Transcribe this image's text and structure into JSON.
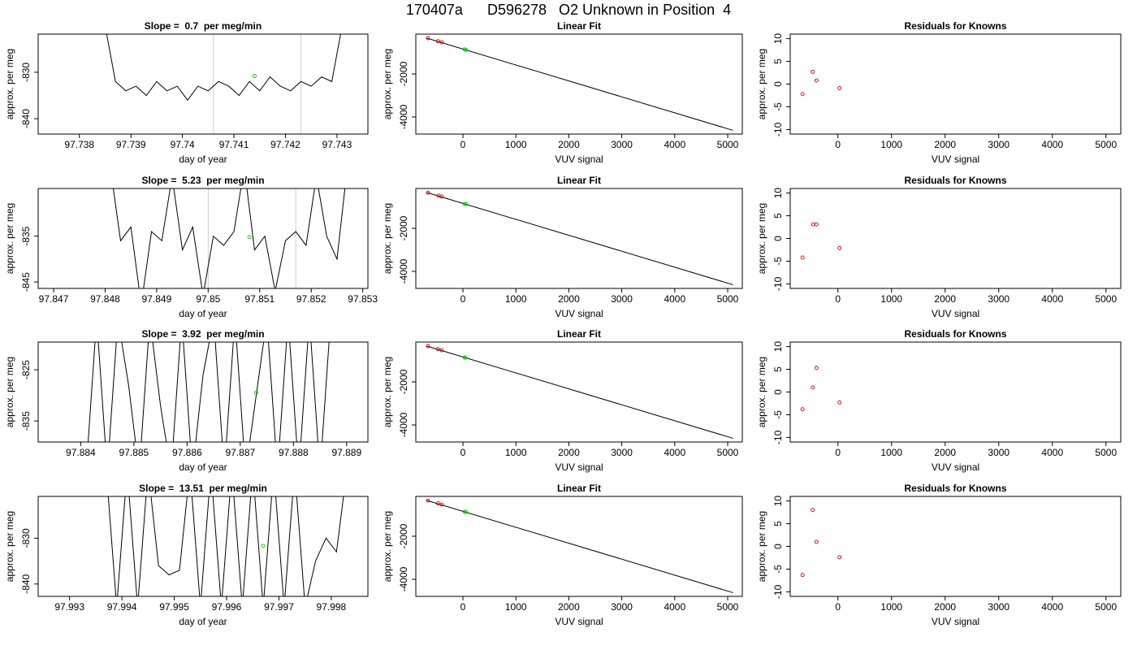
{
  "title": "170407a      D596278   O2 Unknown in Position  4",
  "chart_data": [
    {
      "type": "line",
      "title": "Slope =  0.7  per meg/min",
      "xlabel": "day of year",
      "ylabel": "approx. per meg",
      "xlim": [
        97.7372,
        97.7436
      ],
      "ylim": [
        -843.3,
        -821.8
      ],
      "xticks": [
        97.738,
        97.739,
        97.74,
        97.741,
        97.742,
        97.743
      ],
      "yticks": [
        -840,
        -830
      ],
      "vlines": {
        "color": "#cccccc",
        "values": [
          97.7406,
          97.7423
        ]
      },
      "lines": [
        {
          "color": "#000000",
          "x": [
            97.7385,
            97.7387,
            97.7389,
            97.7391,
            97.7393,
            97.7395,
            97.7397,
            97.7399,
            97.7401,
            97.7403,
            97.7405,
            97.7407,
            97.7409,
            97.7411,
            97.7413,
            97.7415,
            97.7417,
            97.7419,
            97.7421,
            97.7423,
            97.7425,
            97.7427,
            97.7429,
            97.7431
          ],
          "y": [
            -820,
            -832,
            -834,
            -833,
            -835,
            -832,
            -834,
            -833,
            -836,
            -833,
            -834,
            -832,
            -833,
            -835,
            -832,
            -834,
            -831,
            -833,
            -834,
            -832,
            -833,
            -831,
            -832,
            -820
          ]
        }
      ],
      "points": [
        {
          "color": "#00cc00",
          "x": [
            97.7414
          ],
          "y": [
            -830.8
          ]
        }
      ]
    },
    {
      "type": "line",
      "title": "Linear Fit",
      "xlabel": "VUV signal",
      "ylabel": "approx. per meg",
      "xlim": [
        -890,
        5276
      ],
      "ylim": [
        -4792,
        -151
      ],
      "xticks": [
        0,
        1000,
        2000,
        3000,
        4000,
        5000
      ],
      "yticks": [
        -4000,
        -2000
      ],
      "lines": [
        {
          "color": "#000000",
          "x": [
            -680,
            5100
          ],
          "y": [
            -340,
            -4620
          ]
        }
      ],
      "points": [
        {
          "color": "#cc0000",
          "x": [
            -660,
            -470,
            -400
          ],
          "y": [
            -340,
            -480,
            -530
          ]
        },
        {
          "color": "#00cc00",
          "x": [
            30,
            60
          ],
          "y": [
            -860,
            -885
          ]
        }
      ]
    },
    {
      "type": "scatter",
      "title": "Residuals for Knowns",
      "xlabel": "VUV signal",
      "ylabel": "approx. per meg",
      "xlim": [
        -890,
        5276
      ],
      "ylim": [
        -11,
        11
      ],
      "xticks": [
        0,
        1000,
        2000,
        3000,
        4000,
        5000
      ],
      "yticks": [
        -10,
        -5,
        0,
        5,
        10
      ],
      "points": [
        {
          "color": "#cc0000",
          "x": [
            -660,
            -470,
            -400,
            30
          ],
          "y": [
            -2.2,
            2.7,
            0.8,
            -0.9
          ]
        }
      ]
    },
    {
      "type": "line",
      "title": "Slope =  5.23  per meg/min",
      "xlabel": "day of year",
      "ylabel": "approx. per meg",
      "xlim": [
        97.8467,
        97.8531
      ],
      "ylim": [
        -846.4,
        -824.6
      ],
      "xticks": [
        97.847,
        97.848,
        97.849,
        97.85,
        97.851,
        97.852,
        97.853
      ],
      "yticks": [
        -845,
        -835
      ],
      "vlines": {
        "color": "#cccccc",
        "values": [
          97.85,
          97.8517
        ]
      },
      "lines": [
        {
          "color": "#000000",
          "x": [
            97.8481,
            97.8483,
            97.8485,
            97.8487,
            97.8489,
            97.8491,
            97.8493,
            97.8495,
            97.8497,
            97.8499,
            97.8501,
            97.8503,
            97.8505,
            97.8507,
            97.8509,
            97.8511,
            97.8513,
            97.8515,
            97.8517,
            97.8519,
            97.8521,
            97.8523,
            97.8525,
            97.8527
          ],
          "y": [
            -820,
            -836,
            -833,
            -850,
            -834,
            -836,
            -822,
            -838,
            -833,
            -848,
            -835,
            -837,
            -834,
            -820,
            -838,
            -835,
            -847,
            -836,
            -834,
            -837,
            -822,
            -835,
            -840,
            -820
          ]
        }
      ],
      "points": [
        {
          "color": "#00cc00",
          "x": [
            97.8508
          ],
          "y": [
            -835.2
          ]
        }
      ]
    },
    {
      "type": "line",
      "title": "Linear Fit",
      "xlabel": "VUV signal",
      "ylabel": "approx. per meg",
      "xlim": [
        -890,
        5276
      ],
      "ylim": [
        -4792,
        -151
      ],
      "xticks": [
        0,
        1000,
        2000,
        3000,
        4000,
        5000
      ],
      "yticks": [
        -4000,
        -2000
      ],
      "lines": [
        {
          "color": "#000000",
          "x": [
            -680,
            5100
          ],
          "y": [
            -340,
            -4620
          ]
        }
      ],
      "points": [
        {
          "color": "#cc0000",
          "x": [
            -660,
            -460,
            -400
          ],
          "y": [
            -345,
            -485,
            -525
          ]
        },
        {
          "color": "#00cc00",
          "x": [
            30,
            60
          ],
          "y": [
            -865,
            -885
          ]
        }
      ]
    },
    {
      "type": "scatter",
      "title": "Residuals for Knowns",
      "xlabel": "VUV signal",
      "ylabel": "approx. per meg",
      "xlim": [
        -890,
        5276
      ],
      "ylim": [
        -11,
        11
      ],
      "xticks": [
        0,
        1000,
        2000,
        3000,
        4000,
        5000
      ],
      "yticks": [
        -10,
        -5,
        0,
        5,
        10
      ],
      "points": [
        {
          "color": "#cc0000",
          "x": [
            -660,
            -460,
            -400,
            30
          ],
          "y": [
            -4.2,
            3.1,
            3.1,
            -2.1
          ]
        }
      ]
    },
    {
      "type": "line",
      "title": "Slope =  3.92  per meg/min",
      "xlabel": "day of year",
      "ylabel": "approx. per meg",
      "xlim": [
        97.8832,
        97.8894
      ],
      "ylim": [
        -839.1,
        -819.6
      ],
      "xticks": [
        97.884,
        97.885,
        97.886,
        97.887,
        97.888,
        97.889
      ],
      "yticks": [
        -835,
        -825
      ],
      "lines": [
        {
          "color": "#000000",
          "x": [
            97.8841,
            97.8843,
            97.8845,
            97.8847,
            97.8849,
            97.8851,
            97.8853,
            97.8855,
            97.8857,
            97.8859,
            97.8861,
            97.8863,
            97.8865,
            97.8867,
            97.8869,
            97.8871,
            97.8873,
            97.8875,
            97.8877,
            97.8879,
            97.8881,
            97.8883,
            97.8885,
            97.8887
          ],
          "y": [
            -845,
            -815,
            -845,
            -815,
            -828,
            -845,
            -815,
            -832,
            -845,
            -815,
            -845,
            -826,
            -815,
            -845,
            -815,
            -845,
            -830,
            -815,
            -845,
            -815,
            -845,
            -815,
            -845,
            -815
          ]
        }
      ],
      "points": [
        {
          "color": "#00cc00",
          "x": [
            97.8873
          ],
          "y": [
            -829.5
          ]
        }
      ]
    },
    {
      "type": "line",
      "title": "Linear Fit",
      "xlabel": "VUV signal",
      "ylabel": "approx. per meg",
      "xlim": [
        -890,
        5276
      ],
      "ylim": [
        -4792,
        -151
      ],
      "xticks": [
        0,
        1000,
        2000,
        3000,
        4000,
        5000
      ],
      "yticks": [
        -4000,
        -2000
      ],
      "lines": [
        {
          "color": "#000000",
          "x": [
            -680,
            5100
          ],
          "y": [
            -340,
            -4620
          ]
        }
      ],
      "points": [
        {
          "color": "#cc0000",
          "x": [
            -660,
            -470,
            -400
          ],
          "y": [
            -340,
            -480,
            -530
          ]
        },
        {
          "color": "#00cc00",
          "x": [
            30,
            50
          ],
          "y": [
            -860,
            -880
          ]
        }
      ]
    },
    {
      "type": "scatter",
      "title": "Residuals for Knowns",
      "xlabel": "VUV signal",
      "ylabel": "approx. per meg",
      "xlim": [
        -890,
        5276
      ],
      "ylim": [
        -11,
        11
      ],
      "xticks": [
        0,
        1000,
        2000,
        3000,
        4000,
        5000
      ],
      "yticks": [
        -10,
        -5,
        0,
        5,
        10
      ],
      "points": [
        {
          "color": "#cc0000",
          "x": [
            -660,
            -470,
            -400,
            30
          ],
          "y": [
            -3.8,
            1.0,
            5.3,
            -2.3
          ]
        }
      ]
    },
    {
      "type": "line",
      "title": "Slope =  13.51  per meg/min",
      "xlabel": "day of year",
      "ylabel": "approx. per meg",
      "xlim": [
        97.9924,
        97.9987
      ],
      "ylim": [
        -842.7,
        -820.9
      ],
      "xticks": [
        97.993,
        97.994,
        97.995,
        97.996,
        97.997,
        97.998
      ],
      "yticks": [
        -840,
        -830
      ],
      "lines": [
        {
          "color": "#000000",
          "x": [
            97.9937,
            97.9939,
            97.9941,
            97.9943,
            97.9945,
            97.9947,
            97.9949,
            97.9951,
            97.9953,
            97.9955,
            97.9957,
            97.9959,
            97.9961,
            97.9963,
            97.9965,
            97.9967,
            97.9969,
            97.9971,
            97.9973,
            97.9975,
            97.9977,
            97.9979,
            97.9981,
            97.9983
          ],
          "y": [
            -815,
            -845,
            -815,
            -845,
            -815,
            -836,
            -838,
            -837,
            -815,
            -845,
            -815,
            -845,
            -815,
            -845,
            -815,
            -845,
            -815,
            -845,
            -815,
            -845,
            -835,
            -830,
            -833,
            -815
          ]
        }
      ],
      "points": [
        {
          "color": "#00cc00",
          "x": [
            97.9967
          ],
          "y": [
            -831.7
          ]
        }
      ]
    },
    {
      "type": "line",
      "title": "Linear Fit",
      "xlabel": "VUV signal",
      "ylabel": "approx. per meg",
      "xlim": [
        -890,
        5276
      ],
      "ylim": [
        -4792,
        -151
      ],
      "xticks": [
        0,
        1000,
        2000,
        3000,
        4000,
        5000
      ],
      "yticks": [
        -4000,
        -2000
      ],
      "lines": [
        {
          "color": "#000000",
          "x": [
            -680,
            5100
          ],
          "y": [
            -340,
            -4620
          ]
        }
      ],
      "points": [
        {
          "color": "#cc0000",
          "x": [
            -660,
            -470,
            -400
          ],
          "y": [
            -345,
            -475,
            -530
          ]
        },
        {
          "color": "#00cc00",
          "x": [
            30,
            60
          ],
          "y": [
            -860,
            -885
          ]
        }
      ]
    },
    {
      "type": "scatter",
      "title": "Residuals for Knowns",
      "xlabel": "VUV signal",
      "ylabel": "approx. per meg",
      "xlim": [
        -890,
        5276
      ],
      "ylim": [
        -11,
        11
      ],
      "xticks": [
        0,
        1000,
        2000,
        3000,
        4000,
        5000
      ],
      "yticks": [
        -10,
        -5,
        0,
        5,
        10
      ],
      "points": [
        {
          "color": "#cc0000",
          "x": [
            -660,
            -470,
            -400,
            30
          ],
          "y": [
            -6.3,
            8,
            1,
            -2.4
          ]
        }
      ]
    }
  ]
}
